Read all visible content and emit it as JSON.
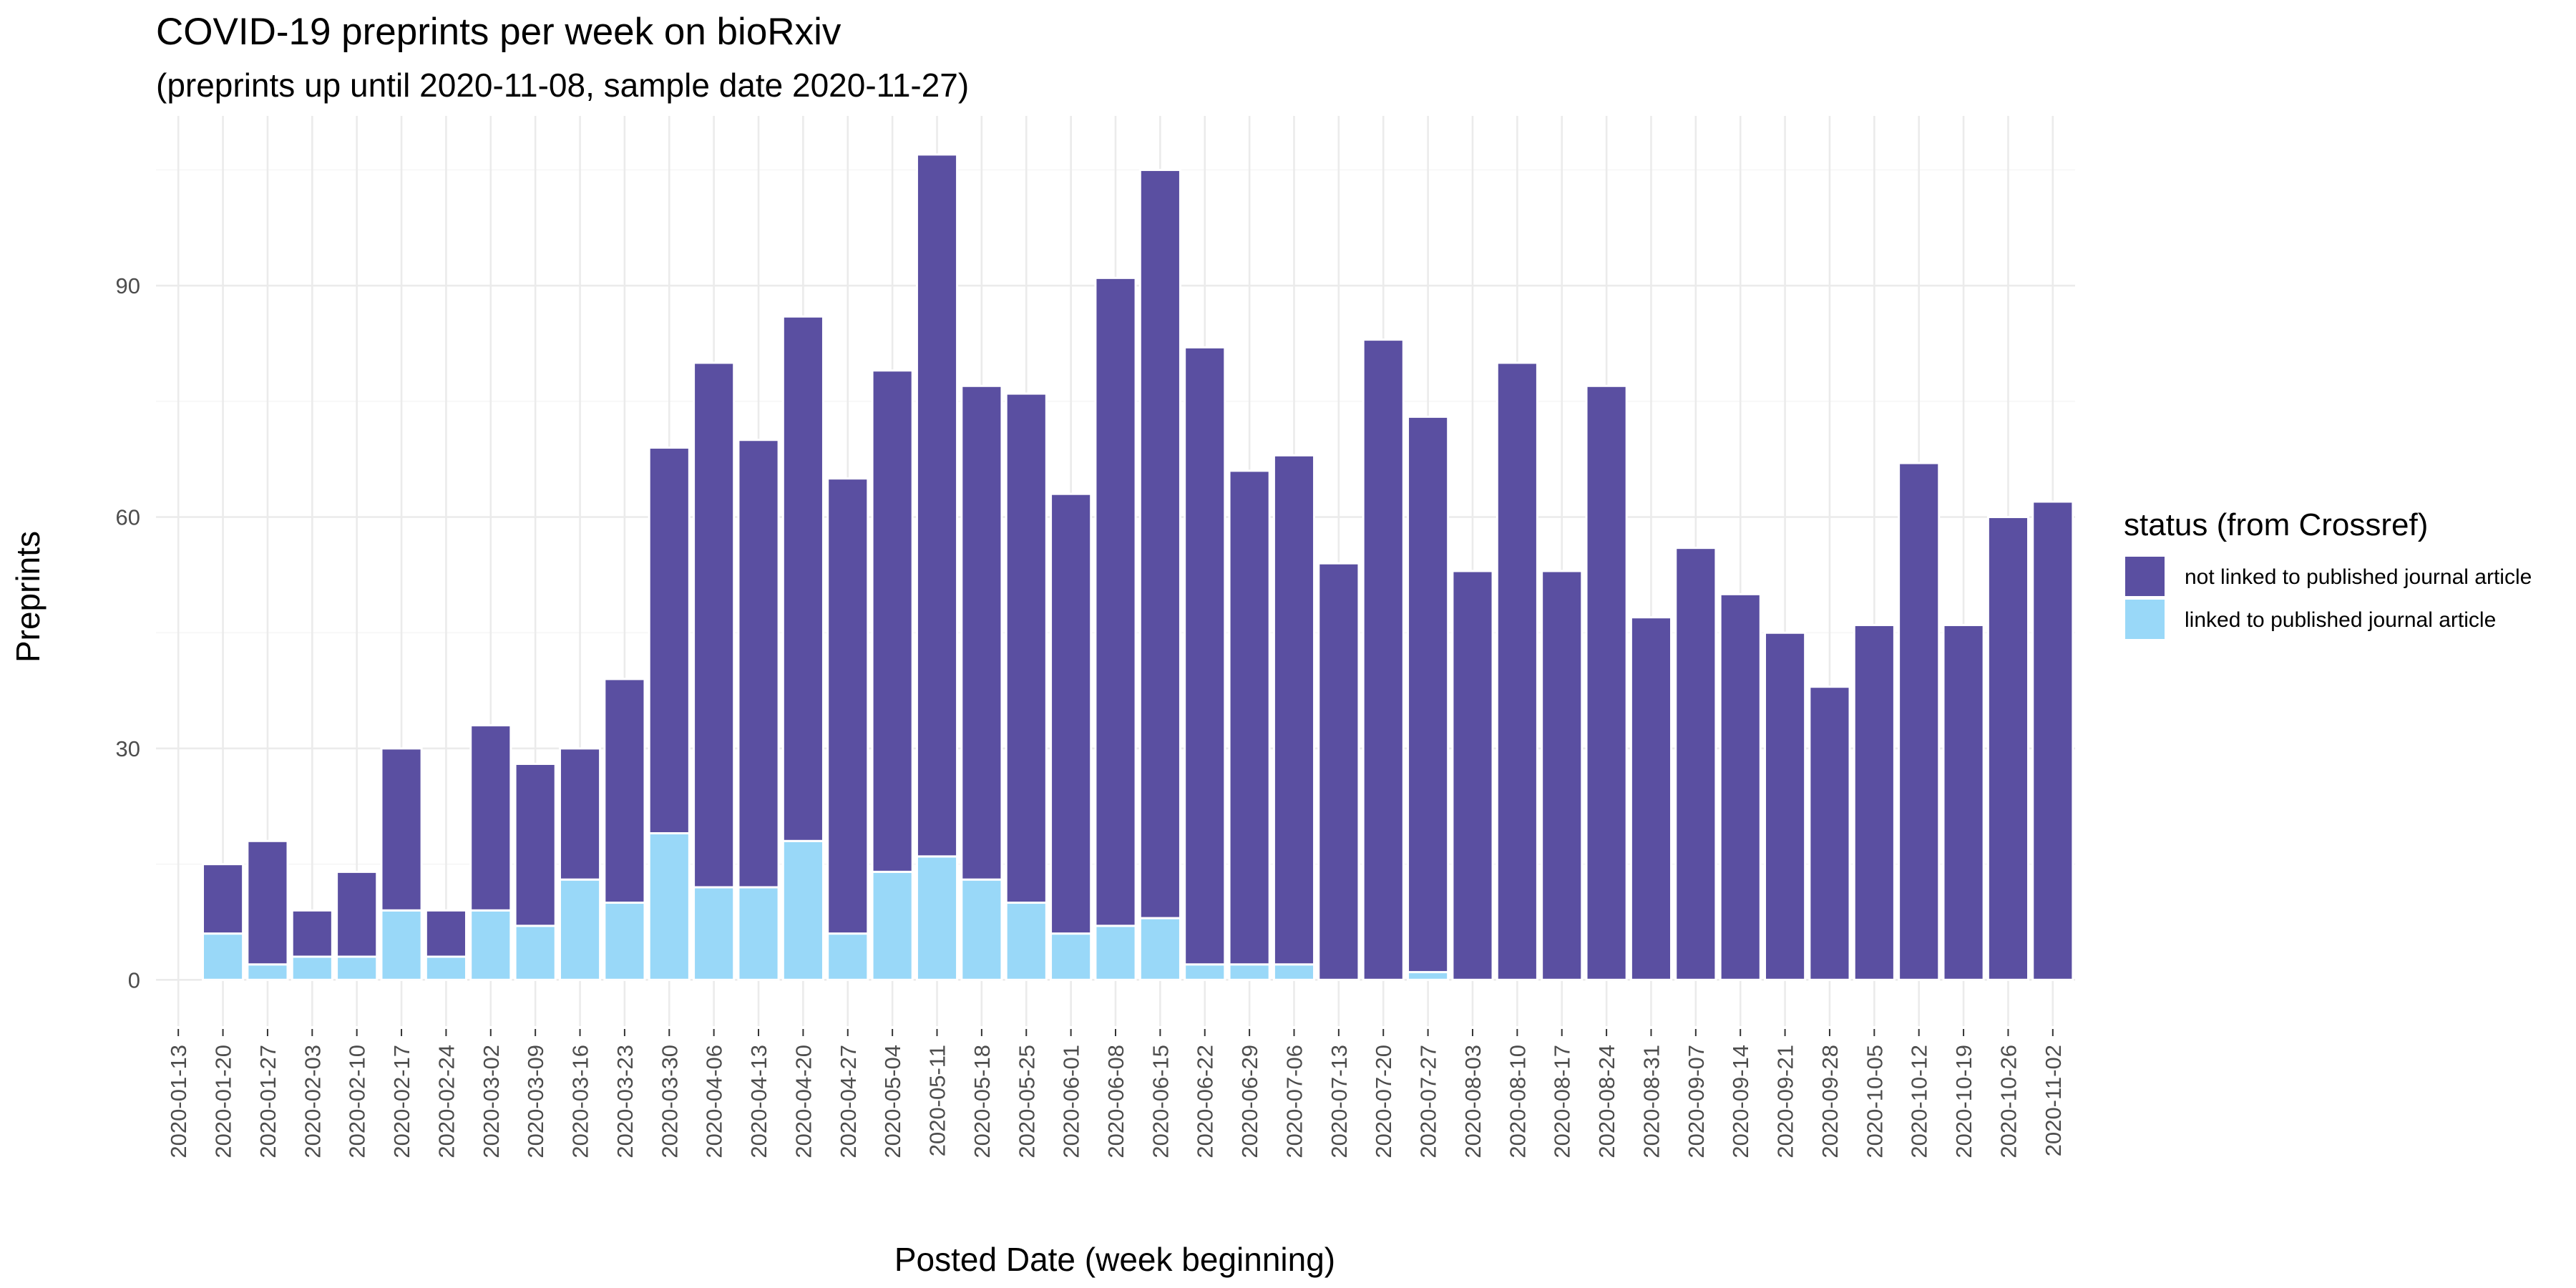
{
  "chart_data": {
    "type": "bar",
    "stacked": true,
    "title": "COVID-19 preprints per week on bioRxiv",
    "subtitle": "(preprints up until 2020-11-08, sample date 2020-11-27)",
    "xlabel": "Posted Date (week beginning)",
    "ylabel": "Preprints",
    "ylim": [
      -6,
      112
    ],
    "yticks": [
      0,
      30,
      60,
      90
    ],
    "grid": true,
    "legend_title": "status (from Crossref)",
    "legend_position": "right",
    "categories": [
      "2020-01-13",
      "2020-01-20",
      "2020-01-27",
      "2020-02-03",
      "2020-02-10",
      "2020-02-17",
      "2020-02-24",
      "2020-03-02",
      "2020-03-09",
      "2020-03-16",
      "2020-03-23",
      "2020-03-30",
      "2020-04-06",
      "2020-04-13",
      "2020-04-20",
      "2020-04-27",
      "2020-05-04",
      "2020-05-11",
      "2020-05-18",
      "2020-05-25",
      "2020-06-01",
      "2020-06-08",
      "2020-06-15",
      "2020-06-22",
      "2020-06-29",
      "2020-07-06",
      "2020-07-13",
      "2020-07-20",
      "2020-07-27",
      "2020-08-03",
      "2020-08-10",
      "2020-08-17",
      "2020-08-24",
      "2020-08-31",
      "2020-09-07",
      "2020-09-14",
      "2020-09-21",
      "2020-09-28",
      "2020-10-05",
      "2020-10-12",
      "2020-10-19",
      "2020-10-26",
      "2020-11-02"
    ],
    "series": [
      {
        "name": "linked to published journal article",
        "color": "#99d8f8",
        "values": [
          null,
          6,
          2,
          3,
          3,
          9,
          3,
          9,
          7,
          13,
          10,
          19,
          12,
          12,
          18,
          6,
          14,
          16,
          13,
          10,
          6,
          7,
          8,
          2,
          2,
          2,
          0,
          0,
          1,
          0,
          0,
          0,
          0,
          0,
          0,
          0,
          0,
          0,
          0,
          0,
          0,
          0,
          0
        ]
      },
      {
        "name": "not linked to published journal article",
        "color": "#5a4fa1",
        "values": [
          null,
          9,
          16,
          6,
          11,
          21,
          6,
          24,
          21,
          17,
          29,
          50,
          68,
          58,
          68,
          59,
          65,
          91,
          64,
          66,
          57,
          84,
          97,
          80,
          64,
          66,
          54,
          83,
          72,
          53,
          80,
          53,
          77,
          47,
          56,
          50,
          45,
          38,
          46,
          67,
          46,
          60,
          62
        ]
      }
    ]
  }
}
